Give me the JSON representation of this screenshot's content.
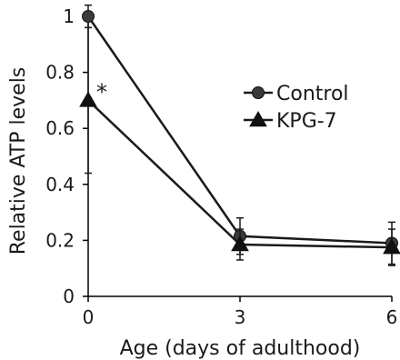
{
  "chart_data": {
    "type": "line",
    "xlabel": "Age (days of adulthood)",
    "ylabel": "Relative ATP levels",
    "x": [
      0,
      3,
      6
    ],
    "x_ticks": [
      "0",
      "3",
      "6"
    ],
    "xlim": [
      0,
      6
    ],
    "y_ticks": [
      "0",
      "0.2",
      "0.4",
      "0.6",
      "0.8",
      "1"
    ],
    "ylim": [
      0,
      1
    ],
    "grid": false,
    "legend_position": "right",
    "series": [
      {
        "name": "Control",
        "marker": "circle",
        "values": [
          1.0,
          0.215,
          0.19
        ],
        "errors": [
          0.04,
          0.065,
          0.075
        ]
      },
      {
        "name": "KPG-7",
        "marker": "triangle",
        "values": [
          0.7,
          0.185,
          0.175
        ],
        "errors": [
          0.26,
          0.055,
          0.065
        ]
      }
    ],
    "annotations": [
      {
        "text": "*",
        "x": 0,
        "y": 0.7
      }
    ],
    "colors": {
      "marker": "#1a1a1a",
      "error": "#1a1a1a"
    }
  }
}
